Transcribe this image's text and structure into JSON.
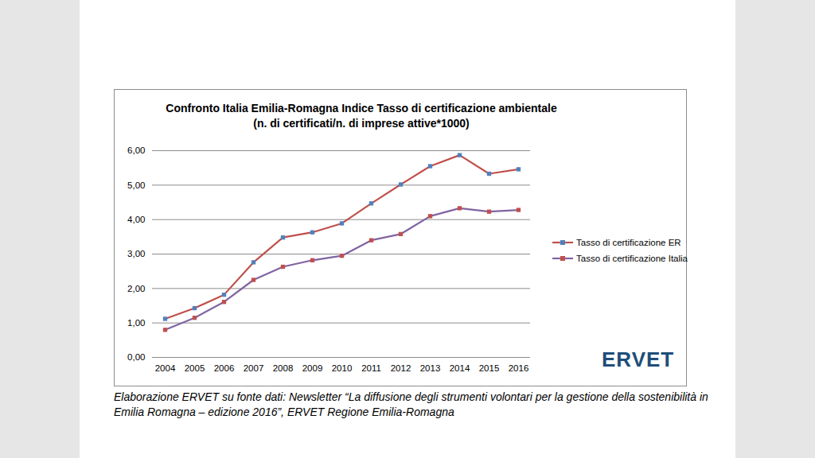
{
  "chart_data": {
    "type": "line",
    "title": "Confronto Italia Emilia-Romagna Indice Tasso di certificazione ambientale",
    "subtitle": "(n. di certificati/n. di imprese attive*1000)",
    "caption": "Elaborazione ERVET su fonte dati: Newsletter “La diffusione degli strumenti volontari per la gestione della sostenibilità in Emilia Romagna – edizione 2016”, ERVET Regione Emilia-Romagna",
    "annotations": [
      "ERVET"
    ],
    "categories": [
      "2004",
      "2005",
      "2006",
      "2007",
      "2008",
      "2009",
      "2010",
      "2011",
      "2012",
      "2013",
      "2014",
      "2015",
      "2016"
    ],
    "series": [
      {
        "name": "Tasso di certificazione ER",
        "color": "#c0504d",
        "marker": "square",
        "values": [
          1.12,
          1.43,
          1.82,
          2.76,
          3.48,
          3.63,
          3.89,
          4.47,
          5.02,
          5.55,
          5.87,
          5.33,
          5.46
        ]
      },
      {
        "name": "Tasso di certificazione Italia",
        "color": "#8064a2",
        "marker": "square",
        "values": [
          0.8,
          1.15,
          1.61,
          2.25,
          2.63,
          2.82,
          2.95,
          3.4,
          3.58,
          4.1,
          4.33,
          4.23,
          4.28
        ]
      }
    ],
    "ylim": [
      0,
      6
    ],
    "yticks": [
      {
        "value": 0,
        "label": "0,00"
      },
      {
        "value": 1,
        "label": "1,00"
      },
      {
        "value": 2,
        "label": "2,00"
      },
      {
        "value": 3,
        "label": "3,00"
      },
      {
        "value": 4,
        "label": "4,00"
      },
      {
        "value": 5,
        "label": "5,00"
      },
      {
        "value": 6,
        "label": "6,00"
      }
    ],
    "grid": true,
    "legend": "right"
  }
}
